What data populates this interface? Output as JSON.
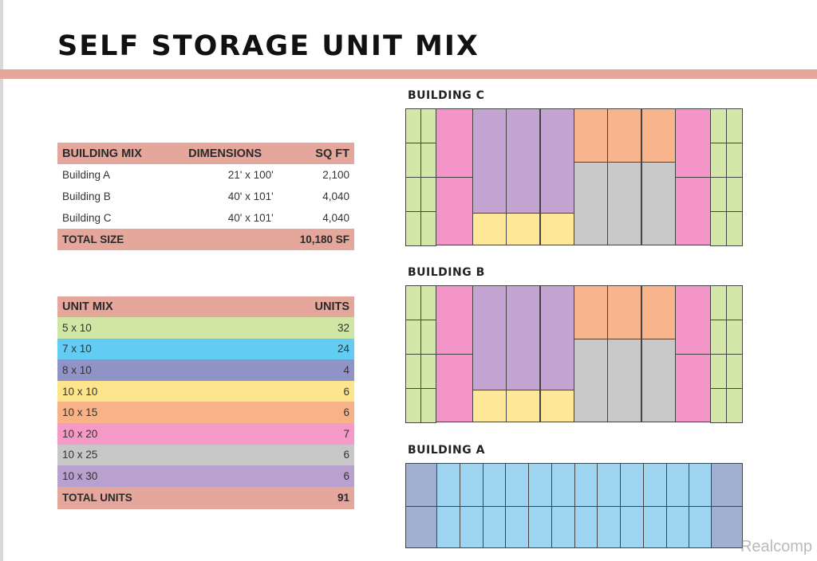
{
  "title": "SELF STORAGE UNIT MIX",
  "building_mix": {
    "headers": {
      "name": "BUILDING MIX",
      "dimensions": "DIMENSIONS",
      "sqft": "SQ FT"
    },
    "rows": [
      {
        "name": "Building A",
        "dimensions": "21' x 100'",
        "sqft": "2,100"
      },
      {
        "name": "Building B",
        "dimensions": "40' x 101'",
        "sqft": "4,040"
      },
      {
        "name": "Building C",
        "dimensions": "40' x 101'",
        "sqft": "4,040"
      }
    ],
    "total": {
      "label": "TOTAL SIZE",
      "value": "10,180 SF"
    }
  },
  "unit_mix": {
    "headers": {
      "name": "UNIT MIX",
      "units": "UNITS"
    },
    "rows": [
      {
        "size": "5 x 10",
        "units": "32",
        "color": "#cfe6a4"
      },
      {
        "size": "7 x 10",
        "units": "24",
        "color": "#62ccf2"
      },
      {
        "size": "8 x 10",
        "units": "4",
        "color": "#8f93c6"
      },
      {
        "size": "10 x 10",
        "units": "6",
        "color": "#fde58e"
      },
      {
        "size": "10 x 15",
        "units": "6",
        "color": "#f8b287"
      },
      {
        "size": "10 x 20",
        "units": "7",
        "color": "#f59ac7"
      },
      {
        "size": "10 x 25",
        "units": "6",
        "color": "#c7c7c7"
      },
      {
        "size": "10 x 30",
        "units": "6",
        "color": "#b8a1cf"
      }
    ],
    "total": {
      "label": "TOTAL UNITS",
      "value": "91"
    }
  },
  "buildings": {
    "c_label": "BUILDING C",
    "b_label": "BUILDING B",
    "a_label": "BUILDING A"
  },
  "watermark": "Realcomp"
}
